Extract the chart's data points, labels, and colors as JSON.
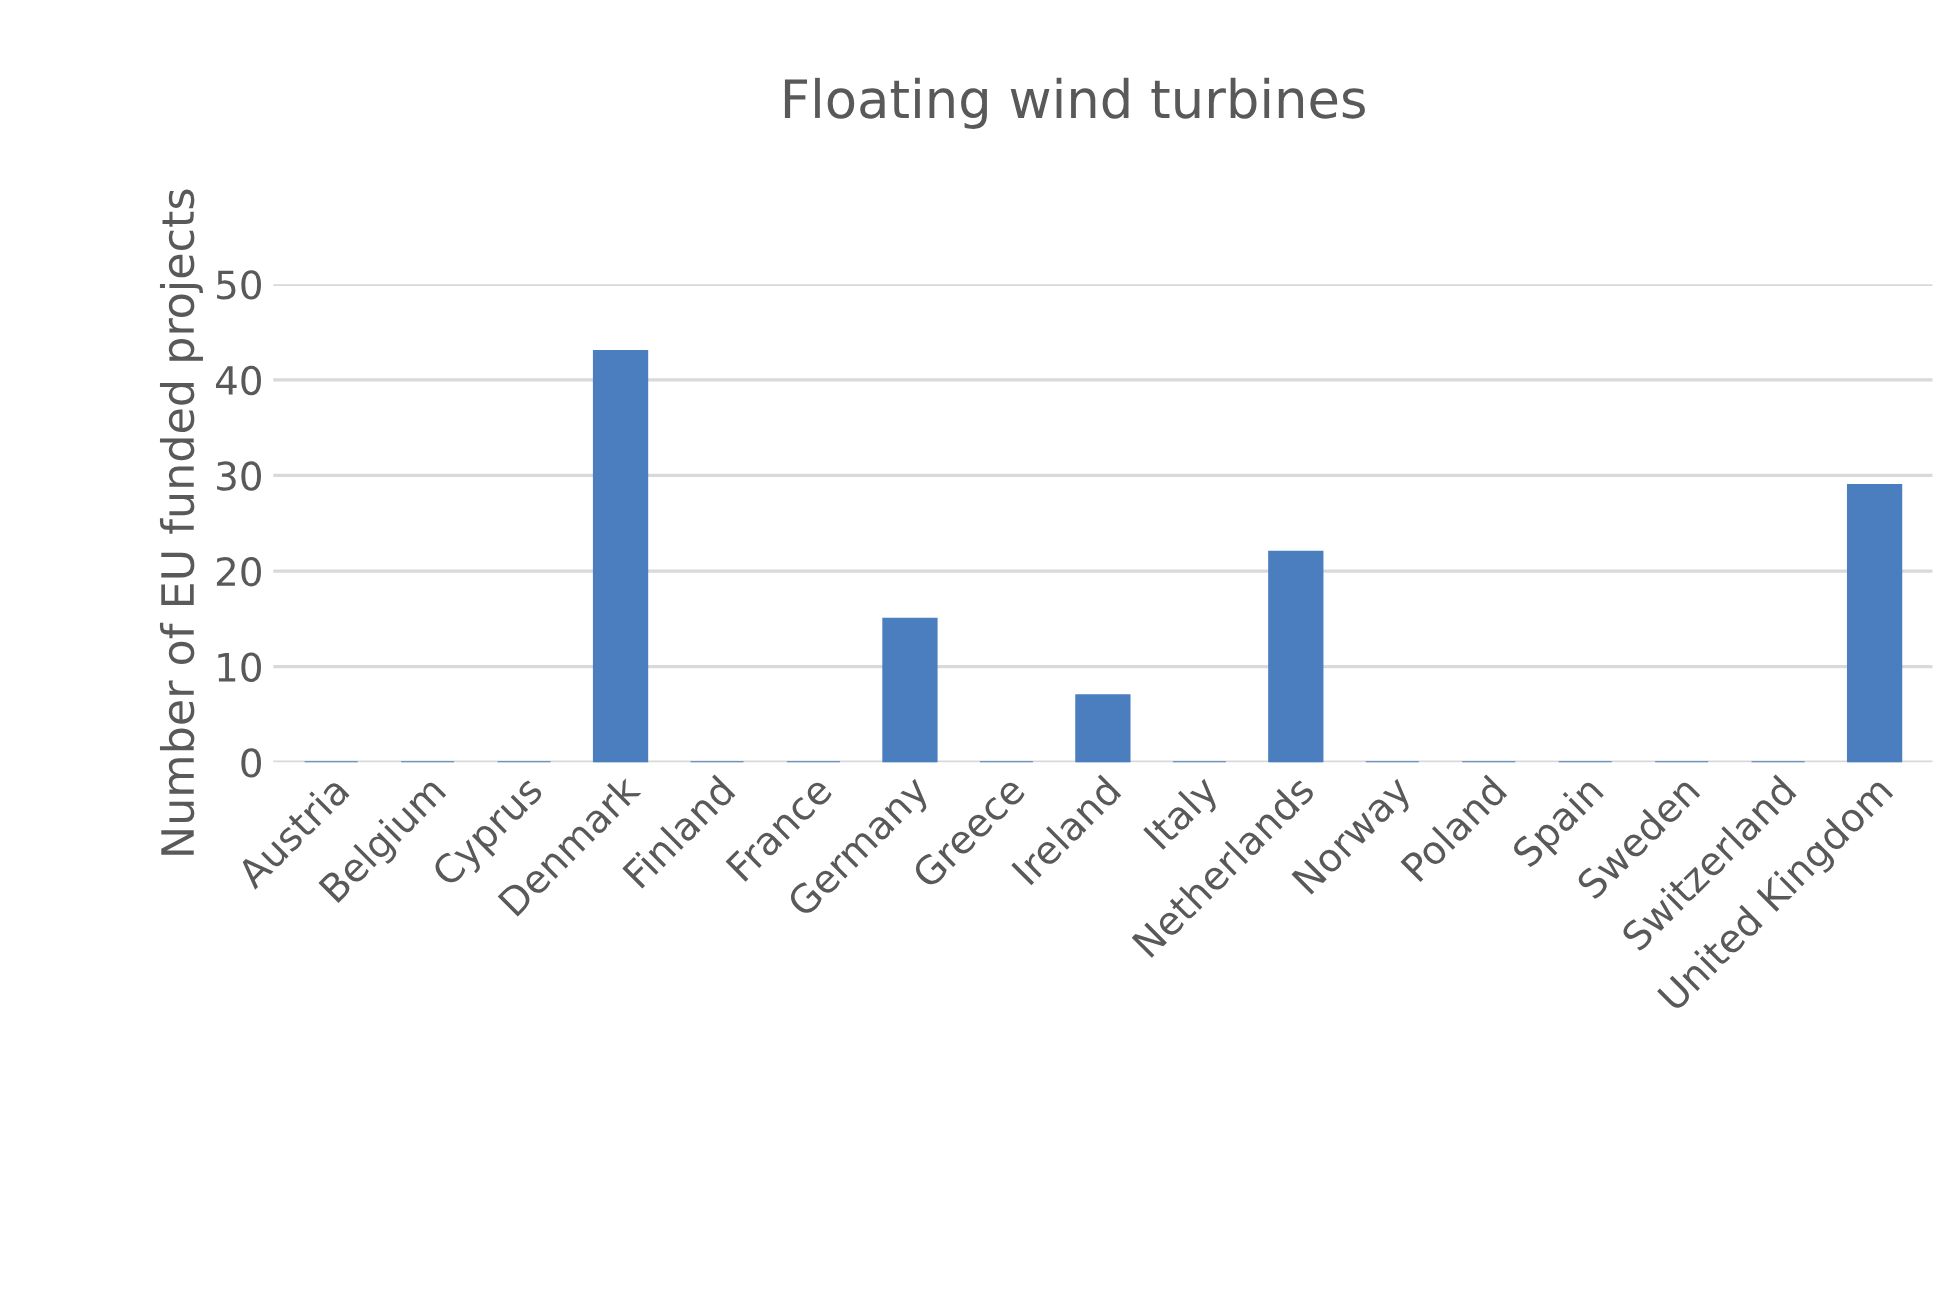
{
  "chart_data": {
    "type": "bar",
    "title": "Floating wind turbines",
    "ylabel": "Number of EU funded projects",
    "categories": [
      "Austria",
      "Belgium",
      "Cyprus",
      "Denmark",
      "Finland",
      "France",
      "Germany",
      "Greece",
      "Ireland",
      "Italy",
      "Netherlands",
      "Norway",
      "Poland",
      "Spain",
      "Sweden",
      "Switzerland",
      "United Kingdom"
    ],
    "values": [
      0,
      0,
      0,
      43,
      0,
      0,
      15,
      0,
      7,
      0,
      22,
      0,
      0,
      0,
      0,
      0,
      29
    ],
    "color": "#4a7ebf",
    "ylim": [
      0,
      50
    ],
    "yticks": [
      0,
      10,
      20,
      30,
      40,
      50
    ],
    "grid": "y",
    "legend": false
  }
}
